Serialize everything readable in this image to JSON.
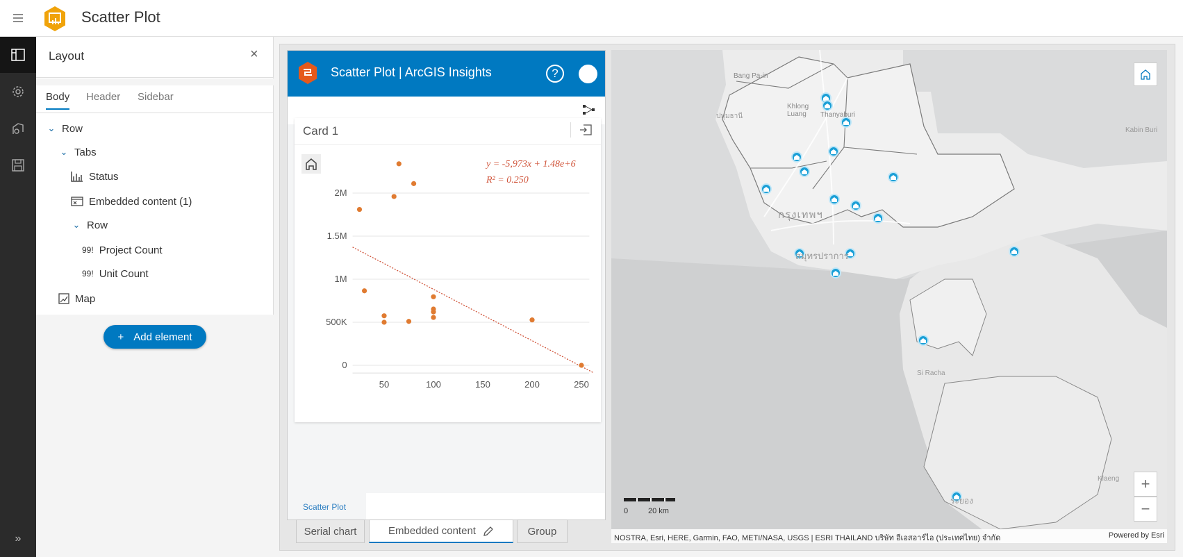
{
  "topbar": {
    "menu_icon": "hamburger-icon",
    "title": "Scatter Plot",
    "logo": "experience-builder-logo",
    "logo_color": "#f0a30a"
  },
  "rail": {
    "items": [
      {
        "icon": "layout-icon",
        "selected": true
      },
      {
        "icon": "gear-icon"
      },
      {
        "icon": "theme-icon"
      },
      {
        "icon": "save-icon"
      }
    ],
    "expand_icon": "double-chevron-right-icon"
  },
  "panel": {
    "title": "Layout",
    "close": "×",
    "tabs": [
      {
        "label": "Body",
        "active": true
      },
      {
        "label": "Header"
      },
      {
        "label": "Sidebar"
      }
    ],
    "tree": [
      {
        "label": "Row",
        "icon": "chevron-down-icon"
      },
      {
        "label": "Tabs",
        "icon": "chevron-down-icon"
      },
      {
        "label": "Status",
        "icon": "chart-icon"
      },
      {
        "label": "Embedded content (1)",
        "icon": "embed-icon"
      },
      {
        "label": "Row",
        "icon": "chevron-down-icon"
      },
      {
        "label": "Project Count",
        "icon": "text-icon",
        "icon_text": "99!"
      },
      {
        "label": "Unit Count",
        "icon": "text-icon",
        "icon_text": "99!"
      },
      {
        "label": "Map",
        "icon": "map-icon"
      }
    ],
    "add_button": "Add element",
    "add_icon": "+"
  },
  "app": {
    "title": "Scatter Plot | ArcGIS Insights",
    "help": "?",
    "header_color": "#0079c1",
    "card_title": "Card 1",
    "bottom_tab": "Scatter Plot"
  },
  "chart_data": {
    "type": "scatter",
    "x_ticks": [
      "50",
      "100",
      "150",
      "200",
      "250"
    ],
    "y_ticks": [
      "0",
      "500K",
      "1M",
      "1.5M",
      "2M"
    ],
    "xlim": [
      18,
      258
    ],
    "ylim": [
      -90000,
      2450000
    ],
    "grid": true,
    "color": "#e07b31",
    "points": [
      [
        25,
        1810000
      ],
      [
        30,
        865000
      ],
      [
        50,
        575000
      ],
      [
        50,
        500000
      ],
      [
        60,
        1960000
      ],
      [
        65,
        2340000
      ],
      [
        75,
        510000
      ],
      [
        80,
        2110000
      ],
      [
        100,
        796000
      ],
      [
        100,
        653000
      ],
      [
        100,
        620000
      ],
      [
        100,
        556000
      ],
      [
        200,
        527000
      ],
      [
        250,
        0
      ]
    ],
    "trendline": {
      "slope": -5973,
      "intercept": 1480000,
      "style": "dotted",
      "color": "#d0543a"
    },
    "equation": "y = -5,973x + 1.48e+6",
    "r2": "R² = 0.250"
  },
  "widget_tabs": [
    {
      "label": "Serial chart"
    },
    {
      "label": "Embedded content",
      "active": true,
      "icon": "pencil-icon"
    },
    {
      "label": "Group"
    }
  ],
  "map": {
    "labels": {
      "bangpain": "Bang Pa-in",
      "khlong": "Khlong Luang",
      "thanyaburi": "Thanyaburi",
      "bangkok": "กรุงเทพฯ",
      "sriracha": "Si Racha",
      "klaeng": "Klaeng",
      "rayong": "ระยอง",
      "kabin": "Kabin Buri",
      "pathum": "ปทุมธานี",
      "samutprakan": "สมุทรปราการ"
    },
    "scale_zero": "0",
    "scale_label": "20 km",
    "attribution": "NOSTRA, Esri, HERE, Garmin, FAO, METI/NASA, USGS | ESRI THAILAND บริษัท อีเอสอาร์ไอ (ประเทศไทย) จำกัด",
    "powered": "Powered by Esri",
    "zoom_in": "+",
    "zoom_out": "−",
    "marker_color": "#1a9fd6"
  }
}
